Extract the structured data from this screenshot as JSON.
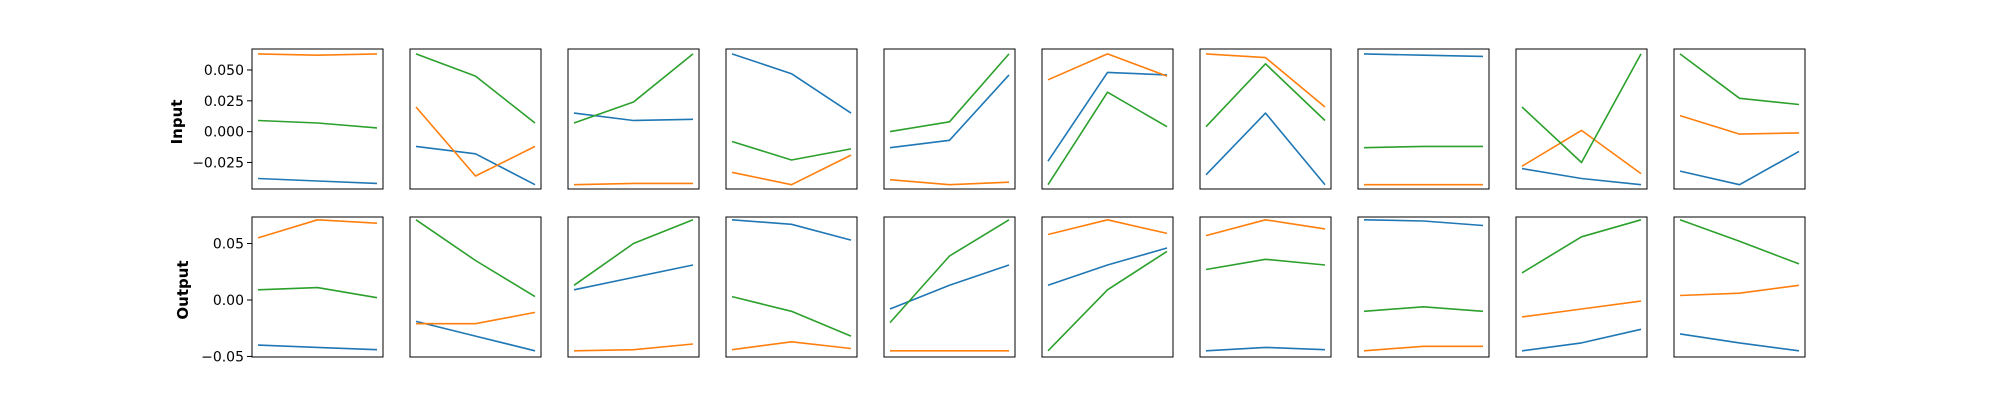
{
  "chart_data": {
    "type": "line",
    "title": "",
    "rows": [
      {
        "label": "Input",
        "ylim": [
          -0.0465,
          0.067
        ],
        "yticks": [
          {
            "value": 0.05,
            "label": "0.050"
          },
          {
            "value": 0.025,
            "label": "0.025"
          },
          {
            "value": 0.0,
            "label": "0.000"
          },
          {
            "value": -0.025,
            "label": "−0.025"
          }
        ],
        "panels": [
          {
            "series": [
              {
                "color": "#1f77b4",
                "values": [
                  -0.038,
                  -0.04,
                  -0.042
                ]
              },
              {
                "color": "#ff7f0e",
                "values": [
                  0.063,
                  0.062,
                  0.063
                ]
              },
              {
                "color": "#2ca02c",
                "values": [
                  0.009,
                  0.007,
                  0.003
                ]
              }
            ]
          },
          {
            "series": [
              {
                "color": "#1f77b4",
                "values": [
                  -0.012,
                  -0.018,
                  -0.043
                ]
              },
              {
                "color": "#ff7f0e",
                "values": [
                  0.02,
                  -0.036,
                  -0.012
                ]
              },
              {
                "color": "#2ca02c",
                "values": [
                  0.063,
                  0.045,
                  0.007
                ]
              }
            ]
          },
          {
            "series": [
              {
                "color": "#1f77b4",
                "values": [
                  0.015,
                  0.009,
                  0.01
                ]
              },
              {
                "color": "#ff7f0e",
                "values": [
                  -0.043,
                  -0.042,
                  -0.042
                ]
              },
              {
                "color": "#2ca02c",
                "values": [
                  0.007,
                  0.024,
                  0.063
                ]
              }
            ]
          },
          {
            "series": [
              {
                "color": "#1f77b4",
                "values": [
                  0.063,
                  0.047,
                  0.015
                ]
              },
              {
                "color": "#ff7f0e",
                "values": [
                  -0.033,
                  -0.043,
                  -0.019
                ]
              },
              {
                "color": "#2ca02c",
                "values": [
                  -0.008,
                  -0.023,
                  -0.014
                ]
              }
            ]
          },
          {
            "series": [
              {
                "color": "#1f77b4",
                "values": [
                  -0.013,
                  -0.007,
                  0.046
                ]
              },
              {
                "color": "#ff7f0e",
                "values": [
                  -0.039,
                  -0.043,
                  -0.041
                ]
              },
              {
                "color": "#2ca02c",
                "values": [
                  0.0,
                  0.008,
                  0.063
                ]
              }
            ]
          },
          {
            "series": [
              {
                "color": "#1f77b4",
                "values": [
                  -0.024,
                  0.048,
                  0.046
                ]
              },
              {
                "color": "#ff7f0e",
                "values": [
                  0.042,
                  0.063,
                  0.045
                ]
              },
              {
                "color": "#2ca02c",
                "values": [
                  -0.043,
                  0.032,
                  0.004
                ]
              }
            ]
          },
          {
            "series": [
              {
                "color": "#1f77b4",
                "values": [
                  -0.035,
                  0.015,
                  -0.043
                ]
              },
              {
                "color": "#ff7f0e",
                "values": [
                  0.063,
                  0.06,
                  0.02
                ]
              },
              {
                "color": "#2ca02c",
                "values": [
                  0.004,
                  0.055,
                  0.009
                ]
              }
            ]
          },
          {
            "series": [
              {
                "color": "#1f77b4",
                "values": [
                  0.063,
                  0.062,
                  0.061
                ]
              },
              {
                "color": "#ff7f0e",
                "values": [
                  -0.043,
                  -0.043,
                  -0.043
                ]
              },
              {
                "color": "#2ca02c",
                "values": [
                  -0.013,
                  -0.012,
                  -0.012
                ]
              }
            ]
          },
          {
            "series": [
              {
                "color": "#1f77b4",
                "values": [
                  -0.03,
                  -0.038,
                  -0.043
                ]
              },
              {
                "color": "#ff7f0e",
                "values": [
                  -0.028,
                  0.001,
                  -0.034
                ]
              },
              {
                "color": "#2ca02c",
                "values": [
                  0.02,
                  -0.025,
                  0.063
                ]
              }
            ]
          },
          {
            "series": [
              {
                "color": "#1f77b4",
                "values": [
                  -0.032,
                  -0.043,
                  -0.016
                ]
              },
              {
                "color": "#ff7f0e",
                "values": [
                  0.013,
                  -0.002,
                  -0.001
                ]
              },
              {
                "color": "#2ca02c",
                "values": [
                  0.063,
                  0.027,
                  0.022
                ]
              }
            ]
          }
        ]
      },
      {
        "label": "Output",
        "ylim": [
          -0.0505,
          0.0735
        ],
        "yticks": [
          {
            "value": 0.05,
            "label": "0.05"
          },
          {
            "value": 0.0,
            "label": "0.00"
          },
          {
            "value": -0.05,
            "label": "−0.05"
          }
        ],
        "panels": [
          {
            "series": [
              {
                "color": "#1f77b4",
                "values": [
                  -0.04,
                  -0.042,
                  -0.044
                ]
              },
              {
                "color": "#ff7f0e",
                "values": [
                  0.055,
                  0.071,
                  0.068
                ]
              },
              {
                "color": "#2ca02c",
                "values": [
                  0.009,
                  0.011,
                  0.002
                ]
              }
            ]
          },
          {
            "series": [
              {
                "color": "#1f77b4",
                "values": [
                  -0.019,
                  -0.032,
                  -0.045
                ]
              },
              {
                "color": "#ff7f0e",
                "values": [
                  -0.021,
                  -0.021,
                  -0.011
                ]
              },
              {
                "color": "#2ca02c",
                "values": [
                  0.071,
                  0.035,
                  0.003
                ]
              }
            ]
          },
          {
            "series": [
              {
                "color": "#1f77b4",
                "values": [
                  0.009,
                  0.02,
                  0.031
                ]
              },
              {
                "color": "#ff7f0e",
                "values": [
                  -0.045,
                  -0.044,
                  -0.039
                ]
              },
              {
                "color": "#2ca02c",
                "values": [
                  0.013,
                  0.05,
                  0.071
                ]
              }
            ]
          },
          {
            "series": [
              {
                "color": "#1f77b4",
                "values": [
                  0.071,
                  0.067,
                  0.053
                ]
              },
              {
                "color": "#ff7f0e",
                "values": [
                  -0.044,
                  -0.037,
                  -0.043
                ]
              },
              {
                "color": "#2ca02c",
                "values": [
                  0.003,
                  -0.01,
                  -0.032
                ]
              }
            ]
          },
          {
            "series": [
              {
                "color": "#1f77b4",
                "values": [
                  -0.008,
                  0.013,
                  0.031
                ]
              },
              {
                "color": "#ff7f0e",
                "values": [
                  -0.045,
                  -0.045,
                  -0.045
                ]
              },
              {
                "color": "#2ca02c",
                "values": [
                  -0.02,
                  0.039,
                  0.071
                ]
              }
            ]
          },
          {
            "series": [
              {
                "color": "#1f77b4",
                "values": [
                  0.013,
                  0.031,
                  0.046
                ]
              },
              {
                "color": "#ff7f0e",
                "values": [
                  0.058,
                  0.071,
                  0.059
                ]
              },
              {
                "color": "#2ca02c",
                "values": [
                  -0.045,
                  0.009,
                  0.043
                ]
              }
            ]
          },
          {
            "series": [
              {
                "color": "#1f77b4",
                "values": [
                  -0.045,
                  -0.042,
                  -0.044
                ]
              },
              {
                "color": "#ff7f0e",
                "values": [
                  0.057,
                  0.071,
                  0.063
                ]
              },
              {
                "color": "#2ca02c",
                "values": [
                  0.027,
                  0.036,
                  0.031
                ]
              }
            ]
          },
          {
            "series": [
              {
                "color": "#1f77b4",
                "values": [
                  0.071,
                  0.07,
                  0.066
                ]
              },
              {
                "color": "#ff7f0e",
                "values": [
                  -0.045,
                  -0.041,
                  -0.041
                ]
              },
              {
                "color": "#2ca02c",
                "values": [
                  -0.01,
                  -0.006,
                  -0.01
                ]
              }
            ]
          },
          {
            "series": [
              {
                "color": "#1f77b4",
                "values": [
                  -0.045,
                  -0.038,
                  -0.026
                ]
              },
              {
                "color": "#ff7f0e",
                "values": [
                  -0.015,
                  -0.008,
                  -0.001
                ]
              },
              {
                "color": "#2ca02c",
                "values": [
                  0.024,
                  0.056,
                  0.071
                ]
              }
            ]
          },
          {
            "series": [
              {
                "color": "#1f77b4",
                "values": [
                  -0.03,
                  -0.038,
                  -0.045
                ]
              },
              {
                "color": "#ff7f0e",
                "values": [
                  0.004,
                  0.006,
                  0.013
                ]
              },
              {
                "color": "#2ca02c",
                "values": [
                  0.071,
                  0.052,
                  0.032
                ]
              }
            ]
          }
        ]
      }
    ]
  }
}
